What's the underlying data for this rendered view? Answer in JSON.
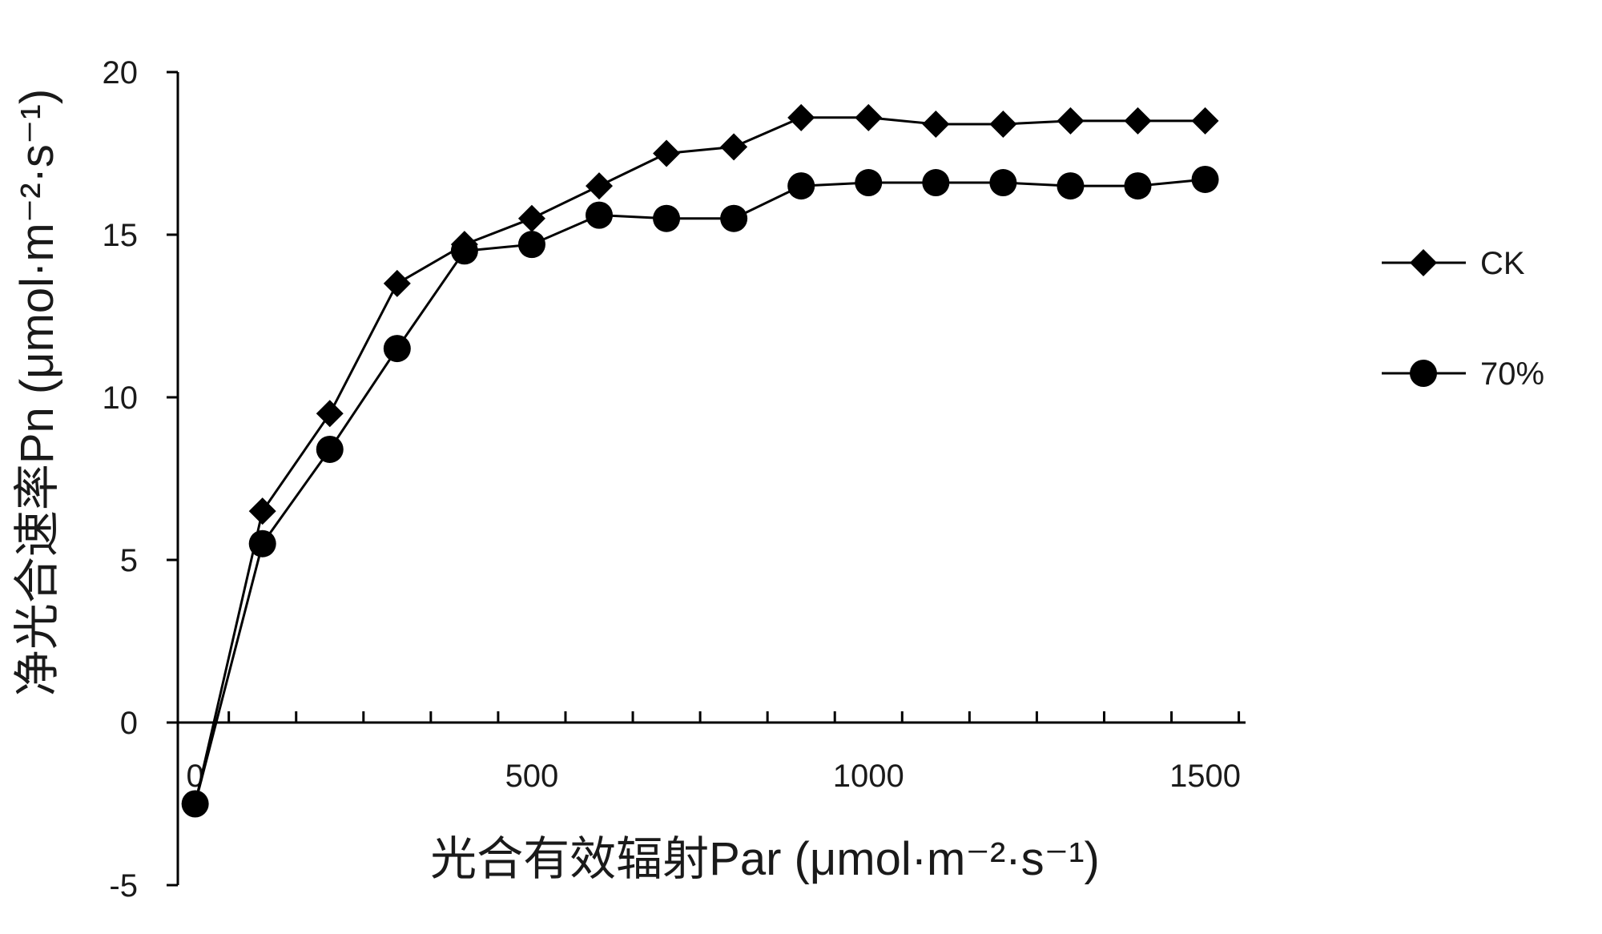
{
  "chart_data": {
    "type": "line",
    "title": "",
    "xlabel": "光合有效辐射Par (μmol·m⁻²·s⁻¹)",
    "ylabel": "净光合速率Pn (μmol·m⁻²·s⁻¹)",
    "xlim": [
      -40,
      1560
    ],
    "ylim": [
      -5,
      20
    ],
    "x_ticks": [
      0,
      500,
      1000,
      1500
    ],
    "y_ticks": [
      -5,
      0,
      5,
      10,
      15,
      20
    ],
    "grid": false,
    "legend_position": "right",
    "x": [
      0,
      100,
      200,
      300,
      400,
      500,
      600,
      700,
      800,
      900,
      1000,
      1100,
      1200,
      1300,
      1400,
      1500
    ],
    "series": [
      {
        "name": "CK",
        "marker": "diamond",
        "color": "#000000",
        "values": [
          -2.5,
          6.5,
          9.5,
          13.5,
          14.7,
          15.5,
          16.5,
          17.5,
          17.7,
          18.6,
          18.6,
          18.4,
          18.4,
          18.5,
          18.5,
          18.5
        ]
      },
      {
        "name": "70%",
        "marker": "circle",
        "color": "#000000",
        "values": [
          -2.5,
          5.5,
          8.4,
          11.5,
          14.5,
          14.7,
          15.6,
          15.5,
          15.5,
          16.5,
          16.6,
          16.6,
          16.6,
          16.5,
          16.5,
          16.7
        ]
      }
    ]
  }
}
